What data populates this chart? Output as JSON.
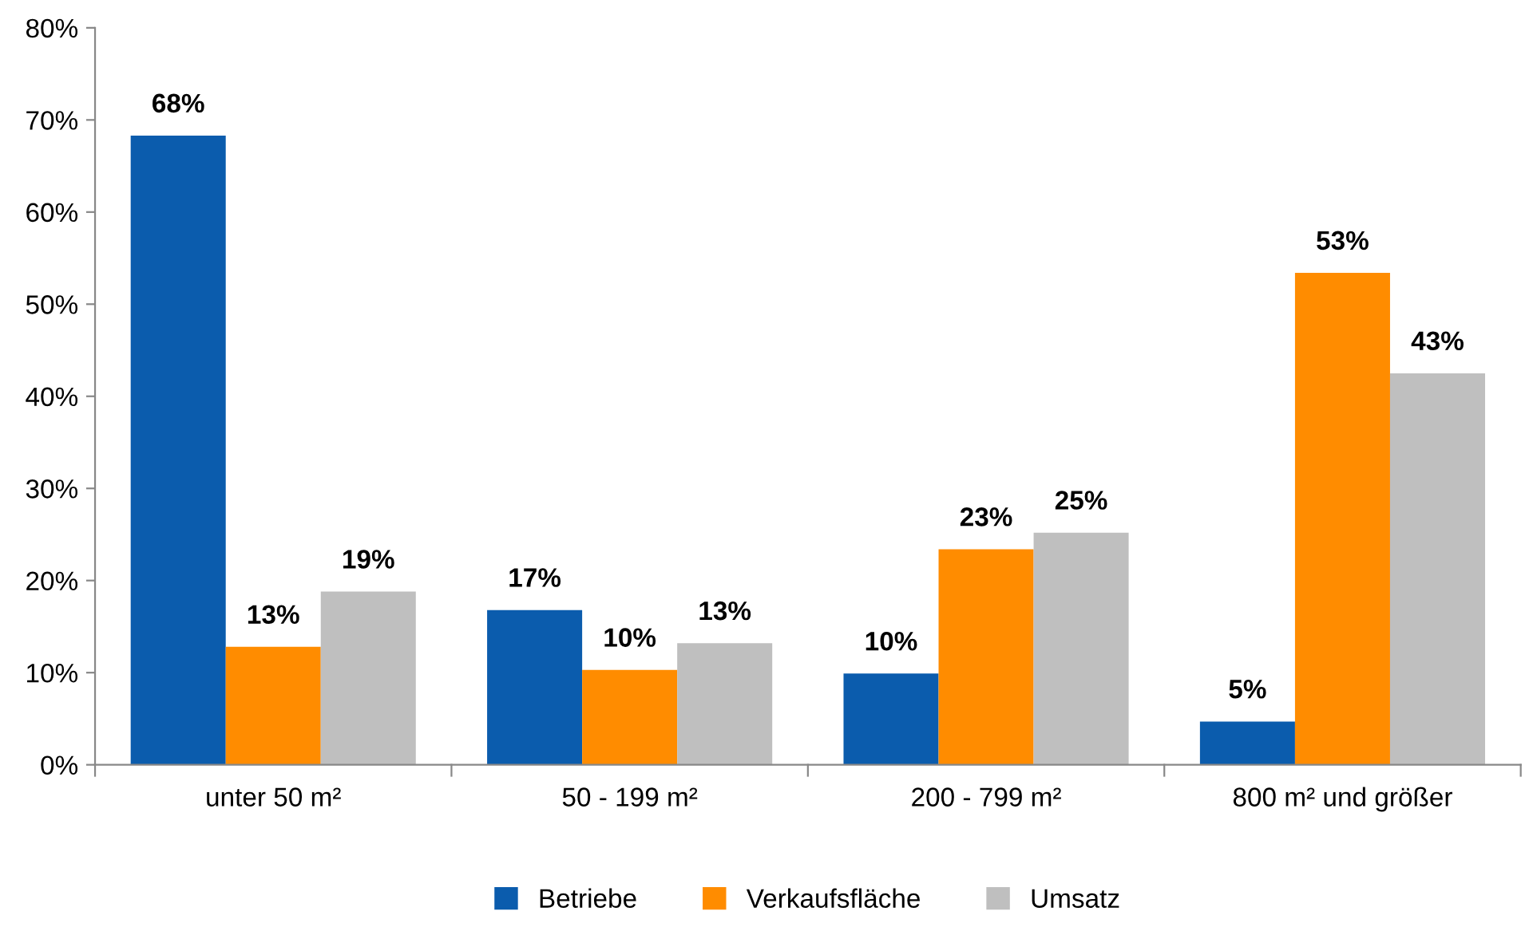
{
  "chart_data": {
    "type": "bar",
    "categories": [
      "unter 50 m²",
      "50 - 199 m²",
      "200 - 799 m²",
      "800 m² und größer"
    ],
    "series": [
      {
        "name": "Betriebe",
        "color": "#0b5cad",
        "values": [
          68.3,
          16.8,
          9.9,
          4.7
        ],
        "value_labels": [
          "68%",
          "17%",
          "10%",
          "5%"
        ]
      },
      {
        "name": "Verkaufsfläche",
        "color": "#ff8c00",
        "values": [
          12.8,
          10.3,
          23.4,
          53.4
        ],
        "value_labels": [
          "13%",
          "10%",
          "23%",
          "53%"
        ]
      },
      {
        "name": "Umsatz",
        "color": "#bfbfbf",
        "values": [
          18.8,
          13.2,
          25.2,
          42.5
        ],
        "value_labels": [
          "19%",
          "13%",
          "25%",
          "43%"
        ]
      }
    ],
    "ylim": [
      0,
      80
    ],
    "yticks": [
      {
        "value": 0,
        "label": "0%"
      },
      {
        "value": 10,
        "label": "10%"
      },
      {
        "value": 20,
        "label": "20%"
      },
      {
        "value": 30,
        "label": "30%"
      },
      {
        "value": 40,
        "label": "40%"
      },
      {
        "value": 50,
        "label": "50%"
      },
      {
        "value": 60,
        "label": "60%"
      },
      {
        "value": 70,
        "label": "70%"
      },
      {
        "value": 80,
        "label": "80%"
      }
    ],
    "grid": false,
    "legend": "bottom"
  }
}
